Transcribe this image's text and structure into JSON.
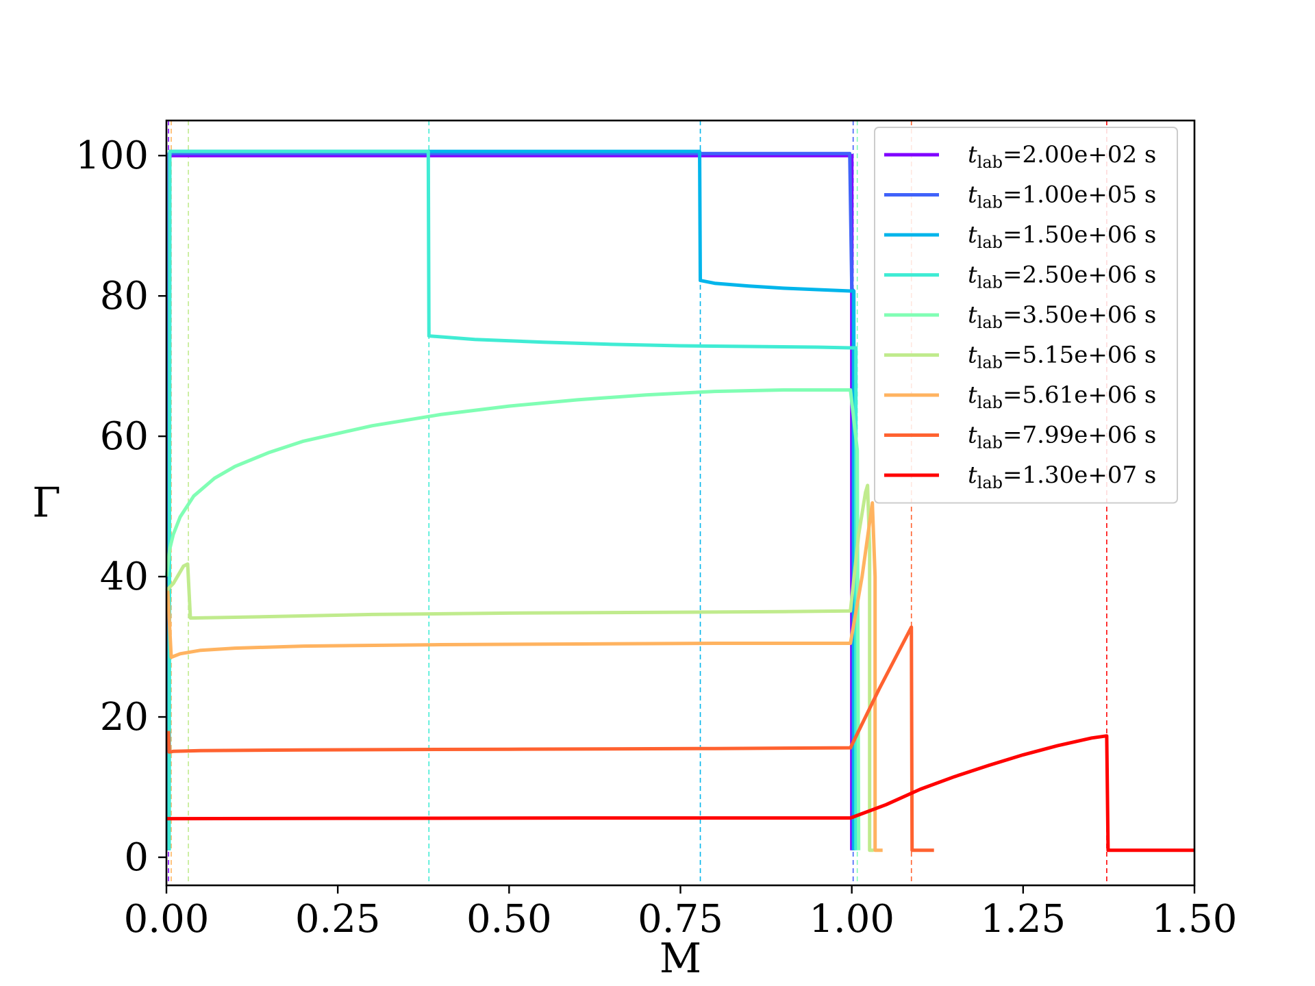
{
  "chart_data": {
    "type": "line",
    "xlabel": "M",
    "ylabel": "Γ",
    "xlim": [
      0,
      1.5
    ],
    "ylim": [
      -4,
      105
    ],
    "xticks": [
      0.0,
      0.25,
      0.5,
      0.75,
      1.0,
      1.25,
      1.5
    ],
    "xtick_labels": [
      "0.00",
      "0.25",
      "0.50",
      "0.75",
      "1.00",
      "1.25",
      "1.50"
    ],
    "yticks": [
      0,
      20,
      40,
      60,
      80,
      100
    ],
    "ytick_labels": [
      "0",
      "20",
      "40",
      "60",
      "80",
      "100"
    ],
    "grid": false,
    "legend_position": "top-right",
    "legend_symbol": "t",
    "legend_subscript": "lab",
    "series": [
      {
        "name": "=2.00e+02 s",
        "color": "#8000ff",
        "vline": 0.003,
        "x": [
          0.003,
          0.004,
          0.1,
          0.5,
          0.9,
          0.998,
          1.0,
          1.0
        ],
        "y": [
          1,
          100,
          100,
          100,
          100,
          100,
          100,
          1
        ]
      },
      {
        "name": "=1.00e+05 s",
        "color": "#4062fa",
        "vline": 1.002,
        "x": [
          0.003,
          0.004,
          0.5,
          0.997,
          1.0,
          1.002,
          1.002
        ],
        "y": [
          1,
          100.3,
          100.3,
          100.3,
          81,
          80.8,
          1
        ]
      },
      {
        "name": "=1.50e+06 s",
        "color": "#00b5eb",
        "vline": 0.779,
        "x": [
          0.004,
          0.005,
          0.5,
          0.776,
          0.778,
          0.779,
          0.8,
          0.85,
          0.9,
          0.95,
          0.998,
          1.003,
          1.003
        ],
        "y": [
          1,
          100.6,
          100.6,
          100.6,
          100.6,
          82.2,
          81.8,
          81.4,
          81.1,
          80.9,
          80.7,
          80.7,
          1
        ]
      },
      {
        "name": "=2.50e+06 s",
        "color": "#40ecd4",
        "vline": 0.383,
        "x": [
          0.004,
          0.005,
          0.2,
          0.38,
          0.382,
          0.383,
          0.45,
          0.55,
          0.65,
          0.75,
          0.85,
          0.95,
          0.998,
          1.006,
          1.006
        ],
        "y": [
          1,
          100.6,
          100.6,
          100.6,
          100.6,
          74.3,
          73.8,
          73.4,
          73.1,
          72.9,
          72.8,
          72.7,
          72.6,
          72.6,
          1
        ]
      },
      {
        "name": "=3.50e+06 s",
        "color": "#80feb4",
        "vline": 1.008,
        "x": [
          0.0,
          0.005,
          0.01,
          0.02,
          0.04,
          0.07,
          0.1,
          0.15,
          0.2,
          0.3,
          0.4,
          0.5,
          0.6,
          0.7,
          0.8,
          0.9,
          0.998,
          1.008,
          1.01,
          1.01
        ],
        "y": [
          40,
          44,
          46,
          48.5,
          51.5,
          54,
          55.7,
          57.7,
          59.3,
          61.5,
          63.1,
          64.3,
          65.2,
          65.9,
          66.4,
          66.6,
          66.6,
          58,
          1,
          1
        ]
      },
      {
        "name": "=5.15e+06 s",
        "color": "#c0eb8d",
        "vline": 0.032,
        "x": [
          0.0,
          0.01,
          0.025,
          0.031,
          0.035,
          0.1,
          0.3,
          0.5,
          0.7,
          0.9,
          0.998,
          1.01,
          1.02,
          1.023,
          1.026,
          1.026,
          1.032
        ],
        "y": [
          38,
          39,
          41.5,
          41.8,
          34.1,
          34.2,
          34.6,
          34.8,
          34.9,
          35,
          35.1,
          46,
          52,
          53,
          44,
          1,
          1
        ]
      },
      {
        "name": "=5.61e+06 s",
        "color": "#ffb360",
        "vline": 0.007,
        "x": [
          0.002,
          0.007,
          0.012,
          0.02,
          0.05,
          0.1,
          0.2,
          0.4,
          0.6,
          0.8,
          0.998,
          1.015,
          1.03,
          1.034,
          1.034,
          1.045
        ],
        "y": [
          38,
          28.5,
          28.7,
          29,
          29.5,
          29.8,
          30.1,
          30.3,
          30.4,
          30.5,
          30.5,
          40,
          50.5,
          40,
          1,
          1
        ]
      },
      {
        "name": "=7.99e+06 s",
        "color": "#ff6230",
        "vline": 1.087,
        "x": [
          0.003,
          0.004,
          0.01,
          0.05,
          0.2,
          0.5,
          0.8,
          0.998,
          1.04,
          1.087,
          1.088,
          1.12
        ],
        "y": [
          18,
          15,
          15.1,
          15.2,
          15.3,
          15.4,
          15.5,
          15.6,
          24,
          32.8,
          1,
          1
        ]
      },
      {
        "name": "=1.30e+07 s",
        "color": "#ff0000",
        "vline": 1.372,
        "x": [
          0.0,
          0.005,
          0.3,
          0.6,
          0.9,
          0.998,
          1.05,
          1.1,
          1.15,
          1.2,
          1.25,
          1.3,
          1.35,
          1.372,
          1.374,
          1.5
        ],
        "y": [
          5.5,
          5.5,
          5.55,
          5.6,
          5.6,
          5.6,
          7.5,
          9.7,
          11.5,
          13.1,
          14.6,
          15.9,
          17.0,
          17.3,
          1,
          1
        ]
      }
    ]
  }
}
